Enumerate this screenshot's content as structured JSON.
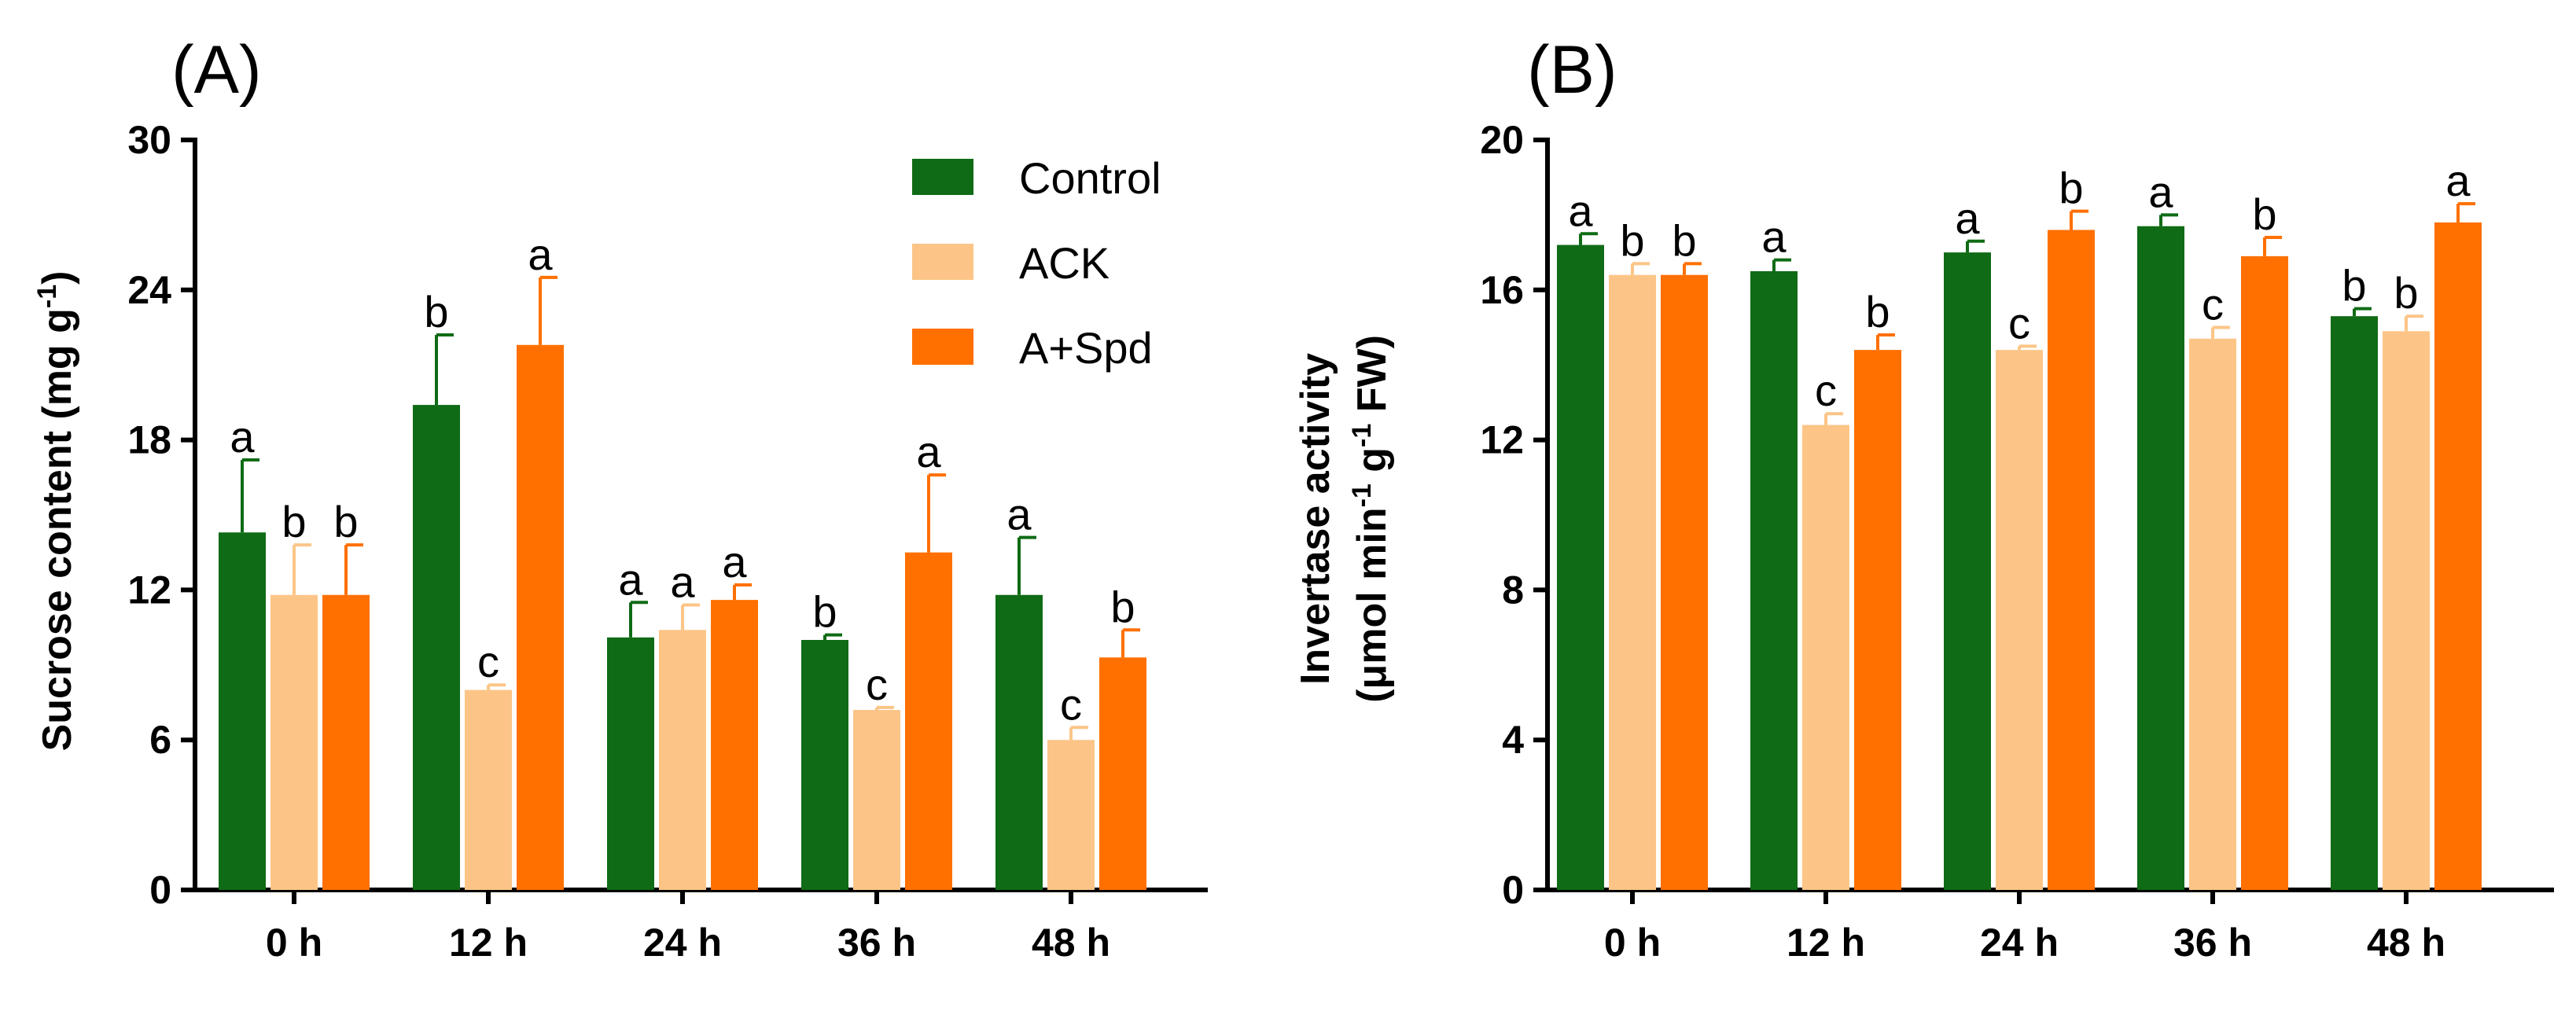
{
  "legend": [
    {
      "name": "Control",
      "color": "#0f6b15"
    },
    {
      "name": "ACK",
      "color": "#fcc587"
    },
    {
      "name": "A+Spd",
      "color": "#ff7000"
    }
  ],
  "chart_data": [
    {
      "type": "bar",
      "panel_label": "(A)",
      "ylabel": "Sucrose content (mg g",
      "ylabel_sup": "-1",
      "ylabel_end": ")",
      "ylim": [
        0,
        30
      ],
      "yticks": [
        0,
        6,
        12,
        18,
        24,
        30
      ],
      "categories": [
        "0 h",
        "12 h",
        "24 h",
        "36 h",
        "48 h"
      ],
      "legend_position": "top-right",
      "series": [
        {
          "name": "Control",
          "color": "#0f6b15",
          "values": [
            14.3,
            19.4,
            10.1,
            10.0,
            11.8
          ],
          "errors": [
            2.9,
            2.8,
            1.4,
            0.2,
            2.3
          ],
          "letters": [
            "a",
            "b",
            "a",
            "b",
            "a"
          ]
        },
        {
          "name": "ACK",
          "color": "#fcc587",
          "values": [
            11.8,
            8.0,
            10.4,
            7.2,
            6.0
          ],
          "errors": [
            2.0,
            0.2,
            1.0,
            0.1,
            0.5
          ],
          "letters": [
            "b",
            "c",
            "a",
            "c",
            "c"
          ]
        },
        {
          "name": "A+Spd",
          "color": "#ff7000",
          "values": [
            11.8,
            21.8,
            11.6,
            13.5,
            9.3
          ],
          "errors": [
            2.0,
            2.7,
            0.6,
            3.1,
            1.1
          ],
          "letters": [
            "b",
            "a",
            "a",
            "a",
            "b"
          ]
        }
      ]
    },
    {
      "type": "bar",
      "panel_label": "(B)",
      "ylabel_line1": "Invertase activity",
      "ylabel_line2": "(μmol min",
      "ylabel_sup1": "-1",
      "ylabel_mid": " g",
      "ylabel_sup2": "-1",
      "ylabel_end": " FW)",
      "ylim": [
        0,
        20
      ],
      "yticks": [
        0,
        4,
        8,
        12,
        16,
        20
      ],
      "categories": [
        "0 h",
        "12 h",
        "24 h",
        "36 h",
        "48 h"
      ],
      "series": [
        {
          "name": "Control",
          "color": "#0f6b15",
          "values": [
            17.2,
            16.5,
            17.0,
            17.7,
            15.3
          ],
          "errors": [
            0.3,
            0.3,
            0.3,
            0.3,
            0.2
          ],
          "letters": [
            "a",
            "a",
            "a",
            "a",
            "b"
          ]
        },
        {
          "name": "ACK",
          "color": "#fcc587",
          "values": [
            16.4,
            12.4,
            14.4,
            14.7,
            14.9
          ],
          "errors": [
            0.3,
            0.3,
            0.1,
            0.3,
            0.4
          ],
          "letters": [
            "b",
            "c",
            "c",
            "c",
            "b"
          ]
        },
        {
          "name": "A+Spd",
          "color": "#ff7000",
          "values": [
            16.4,
            14.4,
            17.6,
            16.9,
            17.8
          ],
          "errors": [
            0.3,
            0.4,
            0.5,
            0.5,
            0.5
          ],
          "letters": [
            "b",
            "b",
            "b",
            "b",
            "a"
          ]
        }
      ]
    }
  ]
}
